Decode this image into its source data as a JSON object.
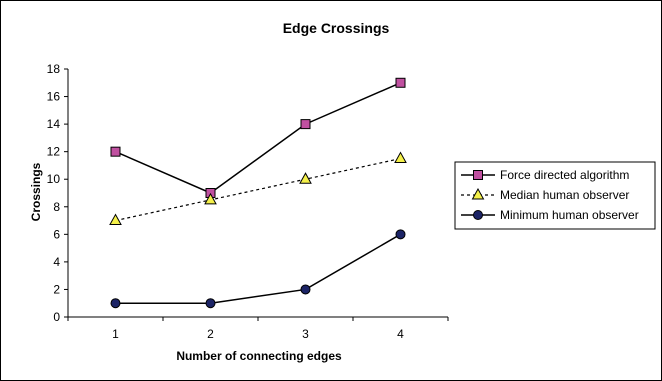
{
  "chart_data": {
    "type": "line",
    "title": "Edge Crossings",
    "xlabel": "Number of connecting edges",
    "ylabel": "Crossings",
    "categories": [
      "1",
      "2",
      "3",
      "4"
    ],
    "ylim": [
      0,
      18
    ],
    "yticks": [
      0,
      2,
      4,
      6,
      8,
      10,
      12,
      14,
      16,
      18
    ],
    "grid": false,
    "legend_position": "right",
    "series": [
      {
        "name": "Force directed algorithm",
        "values": [
          12,
          9,
          14,
          17
        ],
        "line_color": "#000000",
        "line_style": "solid",
        "marker": "square",
        "marker_color": "#c050a0"
      },
      {
        "name": "Median human observer",
        "values": [
          7,
          8.5,
          10,
          11.5
        ],
        "line_color": "#000000",
        "line_style": "dotted",
        "marker": "triangle",
        "marker_color": "#f4f04a"
      },
      {
        "name": "Minimum human observer",
        "values": [
          1,
          1,
          2,
          6
        ],
        "line_color": "#000000",
        "line_style": "solid",
        "marker": "circle",
        "marker_color": "#1c2466"
      }
    ]
  }
}
